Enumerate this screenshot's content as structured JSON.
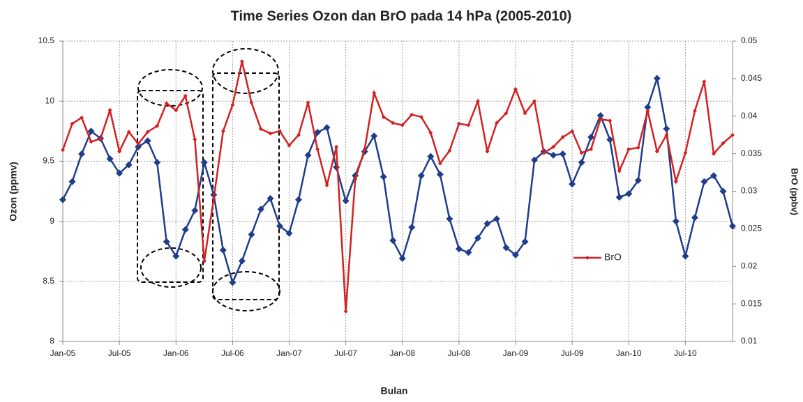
{
  "chart_data": {
    "type": "line",
    "title": "Time Series Ozon dan BrO pada 14 hPa (2005-2010)",
    "x_label": "Bulan",
    "y_label": "Ozon (ppmv)",
    "y2_label": "BrO (ppbv)",
    "categories": [
      "Jan-05",
      null,
      null,
      null,
      null,
      null,
      "Jul-05",
      null,
      null,
      null,
      null,
      null,
      "Jan-06",
      null,
      null,
      null,
      null,
      null,
      "Jul-06",
      null,
      null,
      null,
      null,
      null,
      "Jan-07",
      null,
      null,
      null,
      null,
      null,
      "Jul-07",
      null,
      null,
      null,
      null,
      null,
      "Jan-08",
      null,
      null,
      null,
      null,
      null,
      "Jul-08",
      null,
      null,
      null,
      null,
      null,
      "Jan-09",
      null,
      null,
      null,
      null,
      null,
      "Jul-09",
      null,
      null,
      null,
      null,
      null,
      "Jan-10",
      null,
      null,
      null,
      null,
      null,
      "Jul-10",
      null,
      null,
      null,
      null,
      null
    ],
    "series": [
      {
        "color": "#1f3d8c",
        "axis": "y",
        "values": [
          9.18,
          9.33,
          9.56,
          9.75,
          9.69,
          9.52,
          9.4,
          9.47,
          9.62,
          9.67,
          9.49,
          8.83,
          8.71,
          8.93,
          9.09,
          9.49,
          9.22,
          8.76,
          8.49,
          8.67,
          8.89,
          9.1,
          9.19,
          8.96,
          8.9,
          9.18,
          9.55,
          9.74,
          9.78,
          9.45,
          9.17,
          9.38,
          9.58,
          9.71,
          9.37,
          8.84,
          8.69,
          8.95,
          9.38,
          9.54,
          9.39,
          9.02,
          8.77,
          8.74,
          8.86,
          8.98,
          9.02,
          8.78,
          8.72,
          8.83,
          9.51,
          9.58,
          9.55,
          9.56,
          9.31,
          9.49,
          9.7,
          9.88,
          9.68,
          9.2,
          9.23,
          9.34,
          9.95,
          10.19,
          9.77,
          9.0,
          8.71,
          9.03,
          9.33,
          9.38,
          9.25,
          8.96
        ]
      },
      {
        "name": "BrO",
        "color": "#d42020",
        "axis": "y2",
        "values": [
          0.0355,
          0.039,
          0.0398,
          0.0366,
          0.037,
          0.0408,
          0.0353,
          0.0379,
          0.0363,
          0.0379,
          0.0387,
          0.0417,
          0.0408,
          0.0427,
          0.0369,
          0.0207,
          0.029,
          0.038,
          0.0415,
          0.0473,
          0.0418,
          0.0383,
          0.0377,
          0.038,
          0.0361,
          0.0375,
          0.0418,
          0.0356,
          0.0308,
          0.0359,
          0.014,
          0.0316,
          0.0356,
          0.0431,
          0.0399,
          0.0391,
          0.0388,
          0.0402,
          0.0399,
          0.0378,
          0.0337,
          0.0354,
          0.039,
          0.0388,
          0.042,
          0.0353,
          0.0391,
          0.0404,
          0.0436,
          0.0404,
          0.042,
          0.0351,
          0.0359,
          0.0372,
          0.038,
          0.0351,
          0.0356,
          0.0396,
          0.0394,
          0.0327,
          0.0356,
          0.0358,
          0.0407,
          0.0353,
          0.0375,
          0.0313,
          0.0351,
          0.0407,
          0.0446,
          0.035,
          0.0364,
          0.0375
        ]
      }
    ],
    "ylim": [
      8,
      10.5
    ],
    "yticks": [
      8,
      8.5,
      9,
      9.5,
      10,
      10.5
    ],
    "y2lim": [
      0.01,
      0.05
    ],
    "y2ticks": [
      0.01,
      0.015,
      0.02,
      0.025,
      0.03,
      0.035,
      0.04,
      0.045,
      0.05
    ],
    "grid": true
  }
}
